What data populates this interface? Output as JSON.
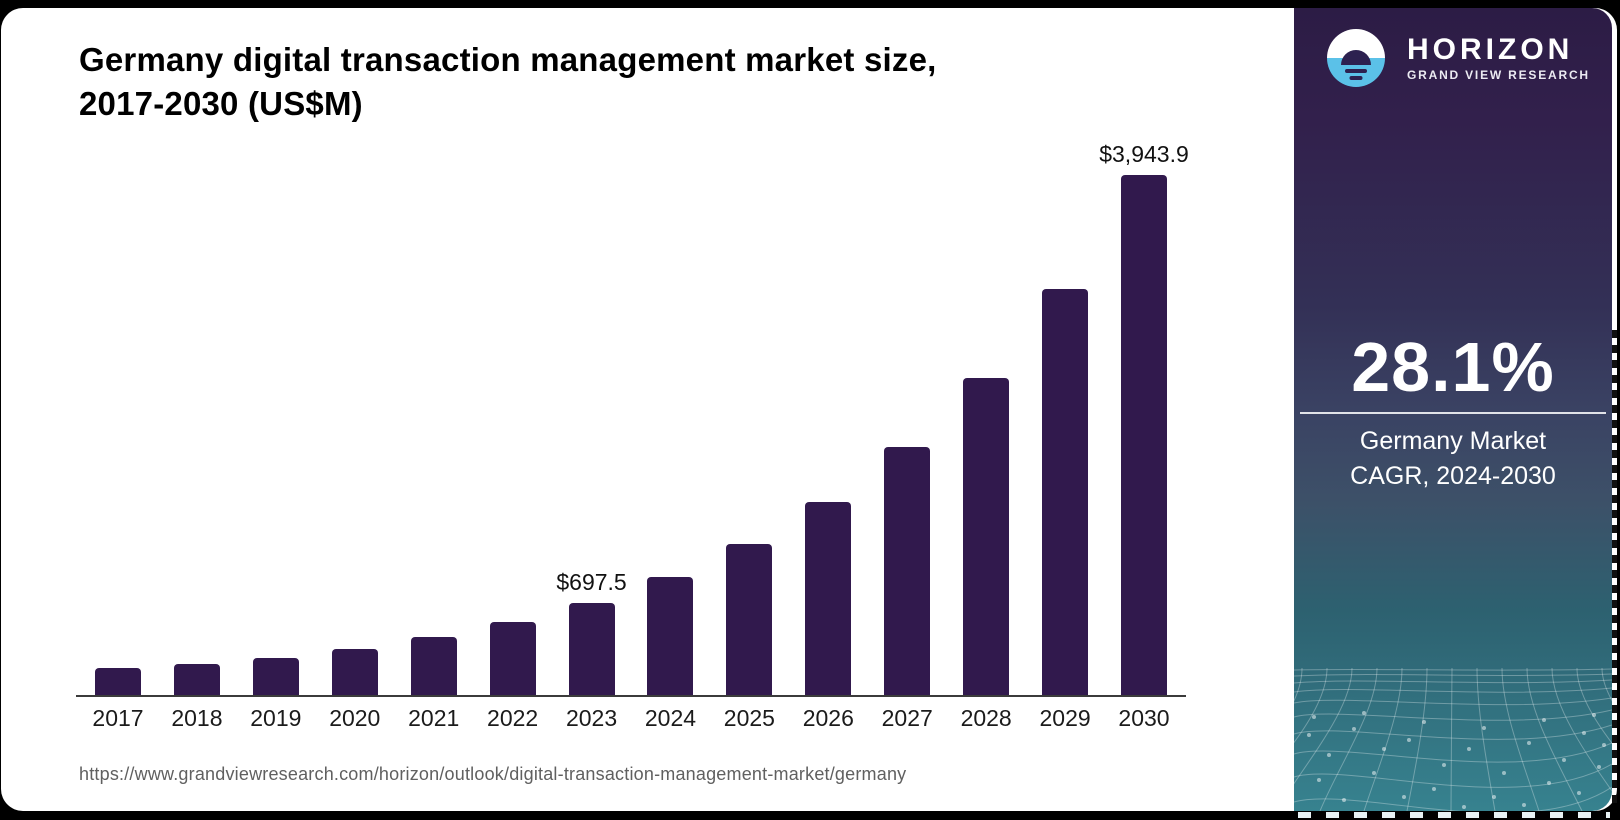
{
  "header": {
    "title": "Germany digital transaction management market size,\n2017-2030 (US$M)"
  },
  "chart_data": {
    "type": "bar",
    "title": "Germany digital transaction management market size, 2017-2030 (US$M)",
    "unit": "US$M",
    "categories": [
      2017,
      2018,
      2019,
      2020,
      2021,
      2022,
      2023,
      2024,
      2025,
      2026,
      2027,
      2028,
      2029,
      2030
    ],
    "values": [
      206,
      237,
      281,
      351,
      441,
      557,
      697.5,
      893.5,
      1144.6,
      1466.3,
      1878.4,
      2406.3,
      3082.6,
      3943.9
    ],
    "point_labels": {
      "2023": "$697.5",
      "2030": "$3,943.9"
    },
    "xlabel": "",
    "ylabel": "",
    "ylim": [
      0,
      4075
    ],
    "grid": "off",
    "legend": "none",
    "bar_color": "#31194d"
  },
  "sidebar": {
    "logo": {
      "brand": "HORIZON",
      "sub": "GRAND VIEW RESEARCH"
    },
    "cagr_value": "28.1%",
    "cagr_label": "Germany Market\nCAGR, 2024-2030"
  },
  "source": {
    "url": "https://www.grandviewresearch.com/horizon/outlook/digital-transaction-management-market/germany"
  },
  "colors": {
    "bar": "#31194d",
    "logo_blue": "#5bc1e8",
    "sidebar_top": "#2c1c45",
    "sidebar_bottom": "#37828f",
    "text_dark": "#1b1b1b",
    "text_source": "#606060"
  }
}
